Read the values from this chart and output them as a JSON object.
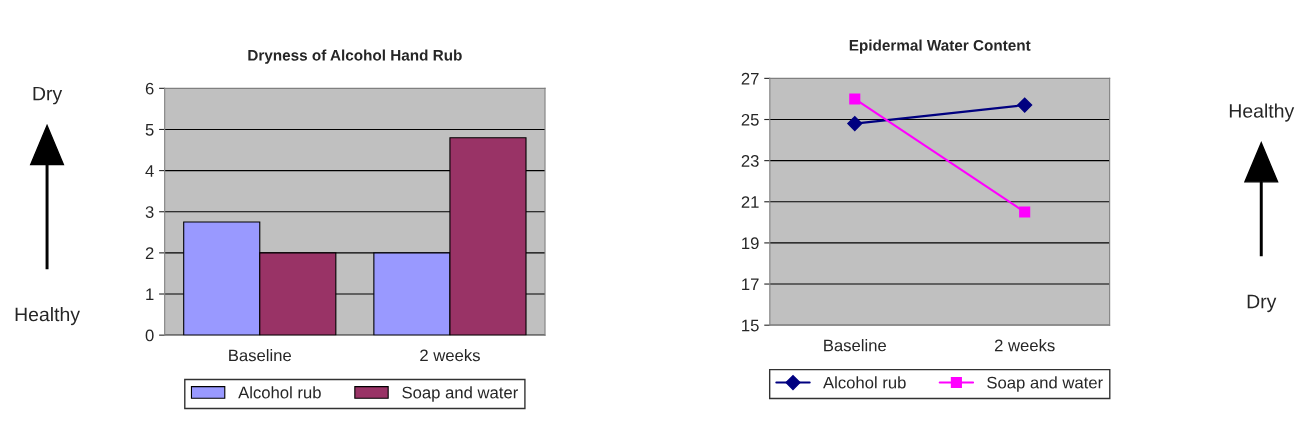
{
  "chart_data": [
    {
      "type": "bar",
      "title": "Dryness of Alcohol Hand Rub",
      "categories": [
        "Baseline",
        "2 weeks"
      ],
      "series": [
        {
          "name": "Alcohol rub",
          "color": "#9999ff",
          "values": [
            2.75,
            2.0
          ]
        },
        {
          "name": "Soap and water",
          "color": "#993366",
          "values": [
            2.0,
            4.8
          ]
        }
      ],
      "ylim": [
        0,
        6
      ],
      "yticks": [
        0,
        1,
        2,
        3,
        4,
        5,
        6
      ],
      "grid": "y",
      "legend": "bottom",
      "annotations": [
        "Dry",
        "Healthy"
      ]
    },
    {
      "type": "line",
      "title": "Epidermal Water Content",
      "categories": [
        "Baseline",
        "2 weeks"
      ],
      "series": [
        {
          "name": "Alcohol rub",
          "color": "#000080",
          "values": [
            24.8,
            25.7
          ],
          "marker": "diamond"
        },
        {
          "name": "Soap and water",
          "color": "#ff00ff",
          "values": [
            26.0,
            20.5
          ],
          "marker": "square"
        }
      ],
      "ylim": [
        15,
        27
      ],
      "yticks": [
        15,
        17,
        19,
        21,
        23,
        25,
        27
      ],
      "grid": "y",
      "legend": "bottom",
      "annotations": [
        "Healthy",
        "Dry"
      ]
    }
  ]
}
